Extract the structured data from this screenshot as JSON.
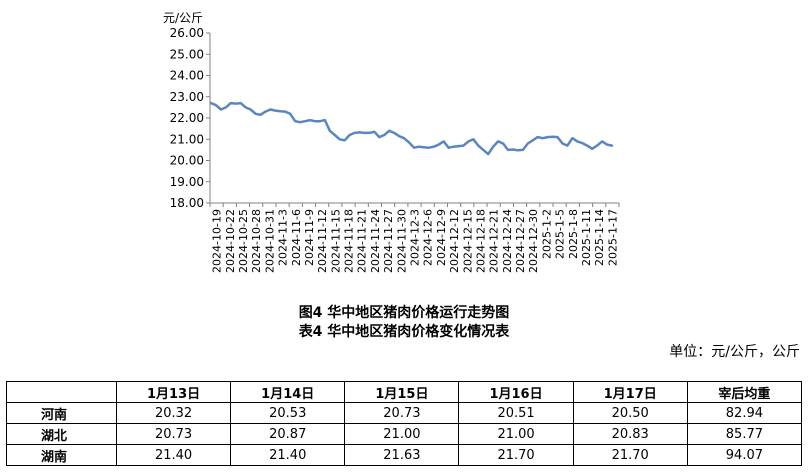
{
  "chart_data": {
    "type": "line",
    "ylabel": "元/公斤",
    "ylim": [
      18.0,
      26.0
    ],
    "yticks": [
      "18.00",
      "19.00",
      "20.00",
      "21.00",
      "22.00",
      "23.00",
      "24.00",
      "25.00",
      "26.00"
    ],
    "xticks": [
      "2024-10-19",
      "2024-10-22",
      "2024-10-25",
      "2024-10-28",
      "2024-10-31",
      "2024-11-3",
      "2024-11-6",
      "2024-11-9",
      "2024-11-12",
      "2024-11-15",
      "2024-11-18",
      "2024-11-21",
      "2024-11-24",
      "2024-11-27",
      "2024-11-30",
      "2024-12-3",
      "2024-12-6",
      "2024-12-9",
      "2024-12-12",
      "2024-12-15",
      "2024-12-18",
      "2024-12-21",
      "2024-12-24",
      "2024-12-27",
      "2024-12-30",
      "2025-1-2",
      "2025-1-5",
      "2025-1-8",
      "2025-1-11",
      "2025-1-14",
      "2025-1-17"
    ],
    "grid": false,
    "color": "#5a86c0",
    "series": [
      {
        "values": [
          22.7,
          22.6,
          22.4,
          22.5,
          22.7,
          22.68,
          22.7,
          22.5,
          22.4,
          22.2,
          22.15,
          22.3,
          22.4,
          22.35,
          22.32,
          22.3,
          22.2,
          21.85,
          21.8,
          21.85,
          21.9,
          21.85,
          21.85,
          21.9,
          21.4,
          21.2,
          21.0,
          20.95,
          21.2,
          21.3,
          21.32,
          21.3,
          21.3,
          21.35,
          21.1,
          21.2,
          21.4,
          21.3,
          21.15,
          21.05,
          20.85,
          20.6,
          20.65,
          20.62,
          20.6,
          20.65,
          20.75,
          20.9,
          20.6,
          20.65,
          20.68,
          20.7,
          20.9,
          21.0,
          20.7,
          20.5,
          20.3,
          20.65,
          20.9,
          20.8,
          20.5,
          20.52,
          20.48,
          20.5,
          20.8,
          20.95,
          21.1,
          21.05,
          21.1,
          21.12,
          21.1,
          20.8,
          20.7,
          21.05,
          20.9,
          20.82,
          20.7,
          20.55,
          20.7,
          20.9,
          20.75,
          20.7
        ]
      }
    ]
  },
  "captions": {
    "figure": "图4  华中地区猪肉价格运行走势图",
    "table": "表4  华中地区猪肉价格变化情况表",
    "unit": "单位：元/公斤，公斤"
  },
  "table": {
    "headers": [
      "",
      "1月13日",
      "1月14日",
      "1月15日",
      "1月16日",
      "1月17日",
      "宰后均重"
    ],
    "rows": [
      [
        "河南",
        "20.32",
        "20.53",
        "20.73",
        "20.51",
        "20.50",
        "82.94"
      ],
      [
        "湖北",
        "20.73",
        "20.87",
        "21.00",
        "21.00",
        "20.83",
        "85.77"
      ],
      [
        "湖南",
        "21.40",
        "21.40",
        "21.63",
        "21.70",
        "21.70",
        "94.07"
      ]
    ]
  }
}
